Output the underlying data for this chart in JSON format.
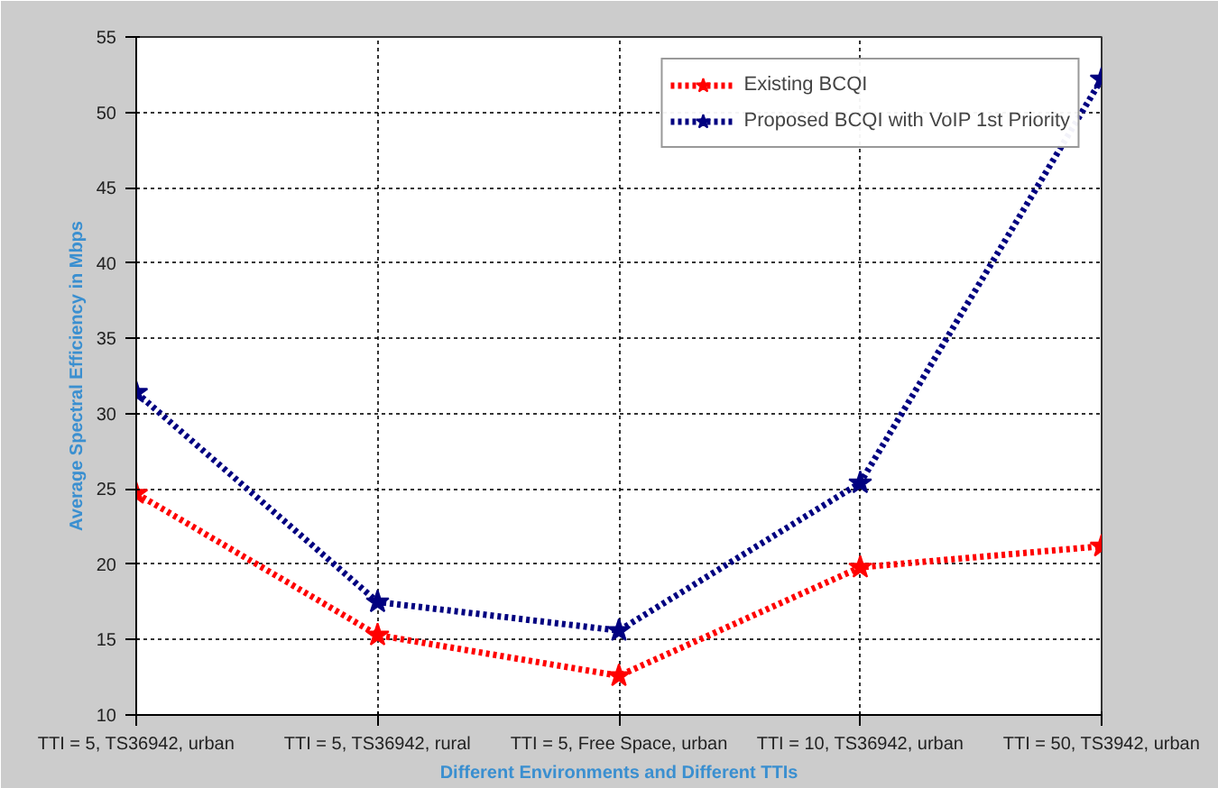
{
  "chart_data": {
    "type": "line",
    "xlabel": "Different Environments and Different TTIs",
    "ylabel": "Average Spectral Efficiency in Mbps",
    "categories": [
      "TTI = 5, TS36942, urban",
      "TTI = 5, TS36942, rural",
      "TTI = 5, Free Space, urban",
      "TTI = 10, TS36942, urban",
      "TTI = 50, TS3942, urban"
    ],
    "series": [
      {
        "name": "Existing BCQI",
        "color": "#ff0000",
        "values": [
          24.7,
          15.3,
          12.6,
          19.8,
          21.2
        ]
      },
      {
        "name": "Proposed BCQI with VoIP 1st Priority",
        "color": "#000080",
        "values": [
          31.4,
          17.5,
          15.6,
          25.4,
          52.2
        ]
      }
    ],
    "ylim": [
      10,
      55
    ],
    "yticks": [
      10,
      15,
      20,
      25,
      30,
      35,
      40,
      45,
      50,
      55
    ],
    "grid": true,
    "legend": "top right",
    "marker": "star",
    "line_style": "dotted"
  }
}
